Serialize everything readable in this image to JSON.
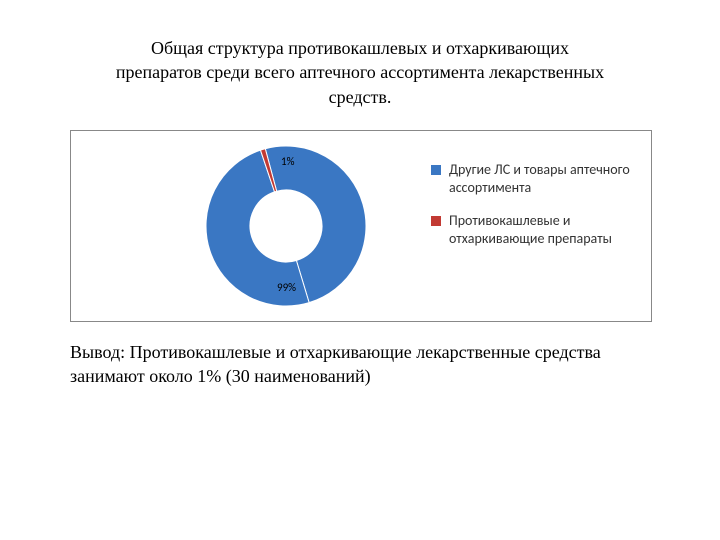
{
  "title": "Общая структура противокашлевых и отхаркивающих препаратов среди всего аптечного ассортимента лекарственных средств.",
  "conclusion": "Вывод: Противокашлевые и отхаркивающие лекарственные средства занимают около 1% (30 наименований)",
  "chart": {
    "type": "donut",
    "background_color": "#ffffff",
    "border_color": "#888888",
    "hole_ratio": 0.45,
    "start_angle_deg": -105,
    "slices": [
      {
        "label": "Другие ЛС и товары аптечного ассортимента",
        "value": 99,
        "display": "99%",
        "color": "#3a77c3"
      },
      {
        "label": "Противокашлевые и отхаркивающие препараты",
        "value": 1,
        "display": "1%",
        "color": "#c23a33"
      }
    ],
    "label_fontsize": 11,
    "legend": {
      "font_family": "Calibri",
      "font_size": 14,
      "text_color": "#333333",
      "swatch_size": 10
    }
  }
}
